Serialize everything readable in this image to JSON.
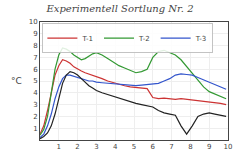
{
  "chart_data": {
    "type": "line",
    "title": "Experimentell Sortlung Nr. 2",
    "ylabel": "°C",
    "x": [
      0.0,
      0.2,
      0.4,
      0.6,
      0.8,
      1.0,
      1.2,
      1.4,
      1.6,
      1.8,
      2.0,
      2.2,
      2.4,
      2.6,
      2.8,
      3.0,
      3.3,
      3.6,
      3.9,
      4.2,
      4.5,
      4.8,
      5.1,
      5.4,
      5.7,
      6.0,
      6.3,
      6.6,
      6.9,
      7.2,
      7.5,
      7.8,
      8.1,
      8.4,
      8.7,
      9.0,
      9.3,
      9.6,
      9.9
    ],
    "series": [
      {
        "name": "T-1",
        "color": "#cc3333",
        "values": [
          0.5,
          1.2,
          2.5,
          4.0,
          5.5,
          6.3,
          6.8,
          6.7,
          6.5,
          6.2,
          6.0,
          5.85,
          5.7,
          5.6,
          5.5,
          5.4,
          5.2,
          5.0,
          4.85,
          4.7,
          4.6,
          4.5,
          4.45,
          4.4,
          4.35,
          3.6,
          3.5,
          3.55,
          3.5,
          3.45,
          3.5,
          3.45,
          3.4,
          3.35,
          3.3,
          3.25,
          3.2,
          3.1,
          3.0
        ]
      },
      {
        "name": "T-2",
        "color": "#339933",
        "values": [
          0.4,
          0.9,
          2.0,
          4.0,
          6.0,
          7.2,
          7.8,
          7.7,
          7.5,
          7.2,
          7.0,
          6.8,
          6.9,
          7.1,
          7.3,
          7.4,
          7.2,
          6.9,
          6.6,
          6.3,
          6.1,
          5.9,
          5.7,
          5.8,
          6.0,
          7.0,
          7.5,
          7.6,
          7.4,
          7.2,
          6.8,
          6.2,
          5.6,
          5.0,
          4.5,
          4.1,
          3.9,
          3.7,
          3.5
        ]
      },
      {
        "name": "T-3",
        "color": "#3355cc",
        "values": [
          0.2,
          0.5,
          1.2,
          2.2,
          3.5,
          4.5,
          5.2,
          5.5,
          5.5,
          5.4,
          5.3,
          5.2,
          5.1,
          5.0,
          5.0,
          4.9,
          4.85,
          4.8,
          4.75,
          4.7,
          4.65,
          4.6,
          4.6,
          4.65,
          4.7,
          4.75,
          4.8,
          5.0,
          5.2,
          5.5,
          5.6,
          5.55,
          5.5,
          5.3,
          5.1,
          4.9,
          4.7,
          4.5,
          4.3
        ]
      },
      {
        "color": "#222222",
        "values": [
          0.1,
          0.3,
          0.6,
          1.2,
          2.2,
          3.5,
          4.8,
          5.5,
          5.8,
          5.7,
          5.5,
          5.2,
          4.9,
          4.6,
          4.4,
          4.2,
          4.0,
          3.85,
          3.7,
          3.5,
          3.35,
          3.2,
          3.1,
          3.0,
          2.9,
          2.8,
          2.5,
          2.3,
          2.2,
          2.1,
          1.2,
          0.5,
          1.2,
          2.0,
          2.2,
          2.3,
          2.2,
          2.1,
          2.0
        ]
      }
    ],
    "xlim": [
      0,
      10
    ],
    "ylim": [
      0,
      10
    ],
    "xticks": [
      1,
      2,
      3,
      4,
      5,
      6,
      7,
      8,
      9,
      10
    ],
    "yticks": [
      1,
      2,
      3,
      4,
      5,
      6,
      7,
      8,
      9,
      10
    ],
    "grid": true,
    "legend": "upper left"
  }
}
